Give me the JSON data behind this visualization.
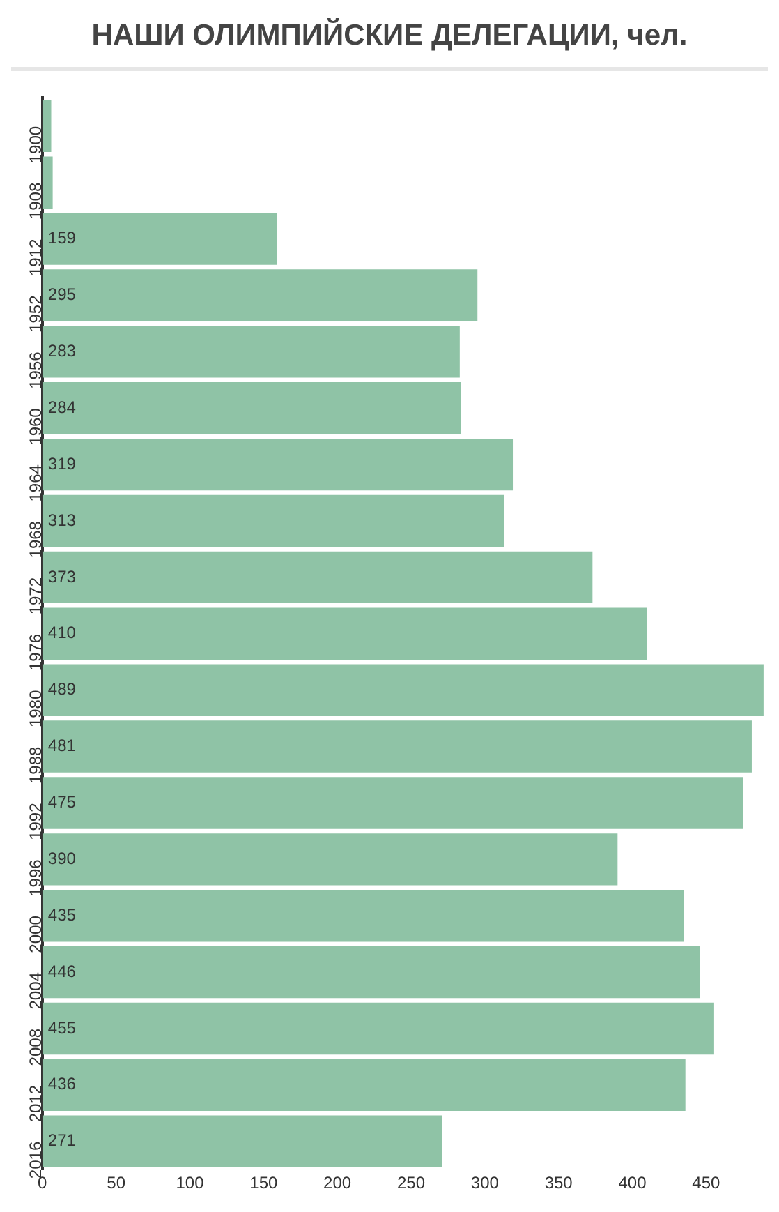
{
  "chart_data": {
    "type": "bar",
    "orientation": "horizontal",
    "title": "НАШИ ОЛИМПИЙСКИЕ ДЕЛЕГАЦИИ, чел.",
    "categories": [
      "1900",
      "1908",
      "1912",
      "1952",
      "1956",
      "1960",
      "1964",
      "1968",
      "1972",
      "1976",
      "1980",
      "1988",
      "1992",
      "1996",
      "2000",
      "2004",
      "2008",
      "2012",
      "2016"
    ],
    "values": [
      6,
      7,
      159,
      295,
      283,
      284,
      319,
      313,
      373,
      410,
      489,
      481,
      475,
      390,
      435,
      446,
      455,
      436,
      271
    ],
    "value_labels": [
      null,
      null,
      "159",
      "295",
      "283",
      "284",
      "319",
      "313",
      "373",
      "410",
      "489",
      "481",
      "475",
      "390",
      "435",
      "446",
      "455",
      "436",
      "271"
    ],
    "color": "#8fc3a6",
    "xlim": [
      0,
      490
    ],
    "xticks": [
      0,
      50,
      100,
      150,
      200,
      250,
      300,
      350,
      400,
      450
    ],
    "grid": false,
    "legend": false
  }
}
